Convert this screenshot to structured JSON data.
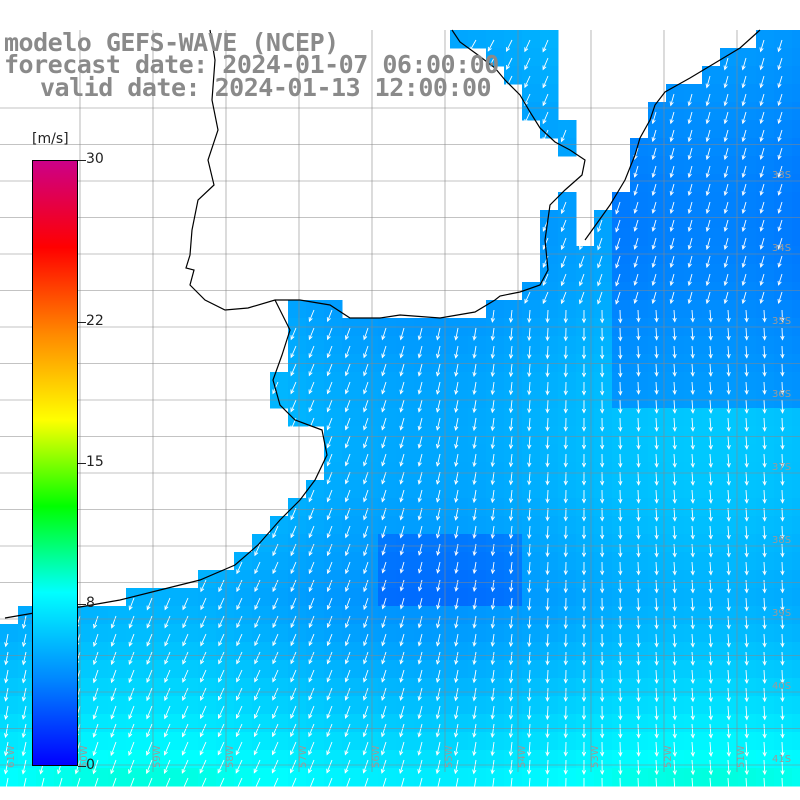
{
  "header": {
    "model_line": "modelo GEFS-WAVE (NCEP)",
    "forecast_line": "forecast date: 2024-01-07 06:00:00",
    "valid_line": "valid date: 2024-01-13 12:00:00"
  },
  "colorbar": {
    "unit": "[m/s]",
    "ticks": [
      "30",
      "22",
      "15",
      "8",
      "0"
    ],
    "tick_values": [
      30,
      22,
      15,
      8,
      0
    ],
    "range": [
      0,
      30
    ],
    "colors": [
      "#0000ff",
      "#0088ff",
      "#00ffff",
      "#00ff00",
      "#ffff00",
      "#ff8800",
      "#ff0000",
      "#cc0088"
    ]
  },
  "grid": {
    "lat_labels": [
      "33S",
      "34S",
      "35S",
      "36S",
      "37S",
      "38S",
      "39S",
      "40S",
      "41S"
    ],
    "lon_labels": [
      "61W",
      "60W",
      "59W",
      "58W",
      "57W",
      "56W",
      "55W",
      "54W",
      "53W",
      "52W",
      "51W"
    ]
  },
  "map": {
    "land_color": "#ffffff",
    "coast_color": "#000000",
    "grid_color": "#888888",
    "arrow_color": "#ffffff"
  }
}
